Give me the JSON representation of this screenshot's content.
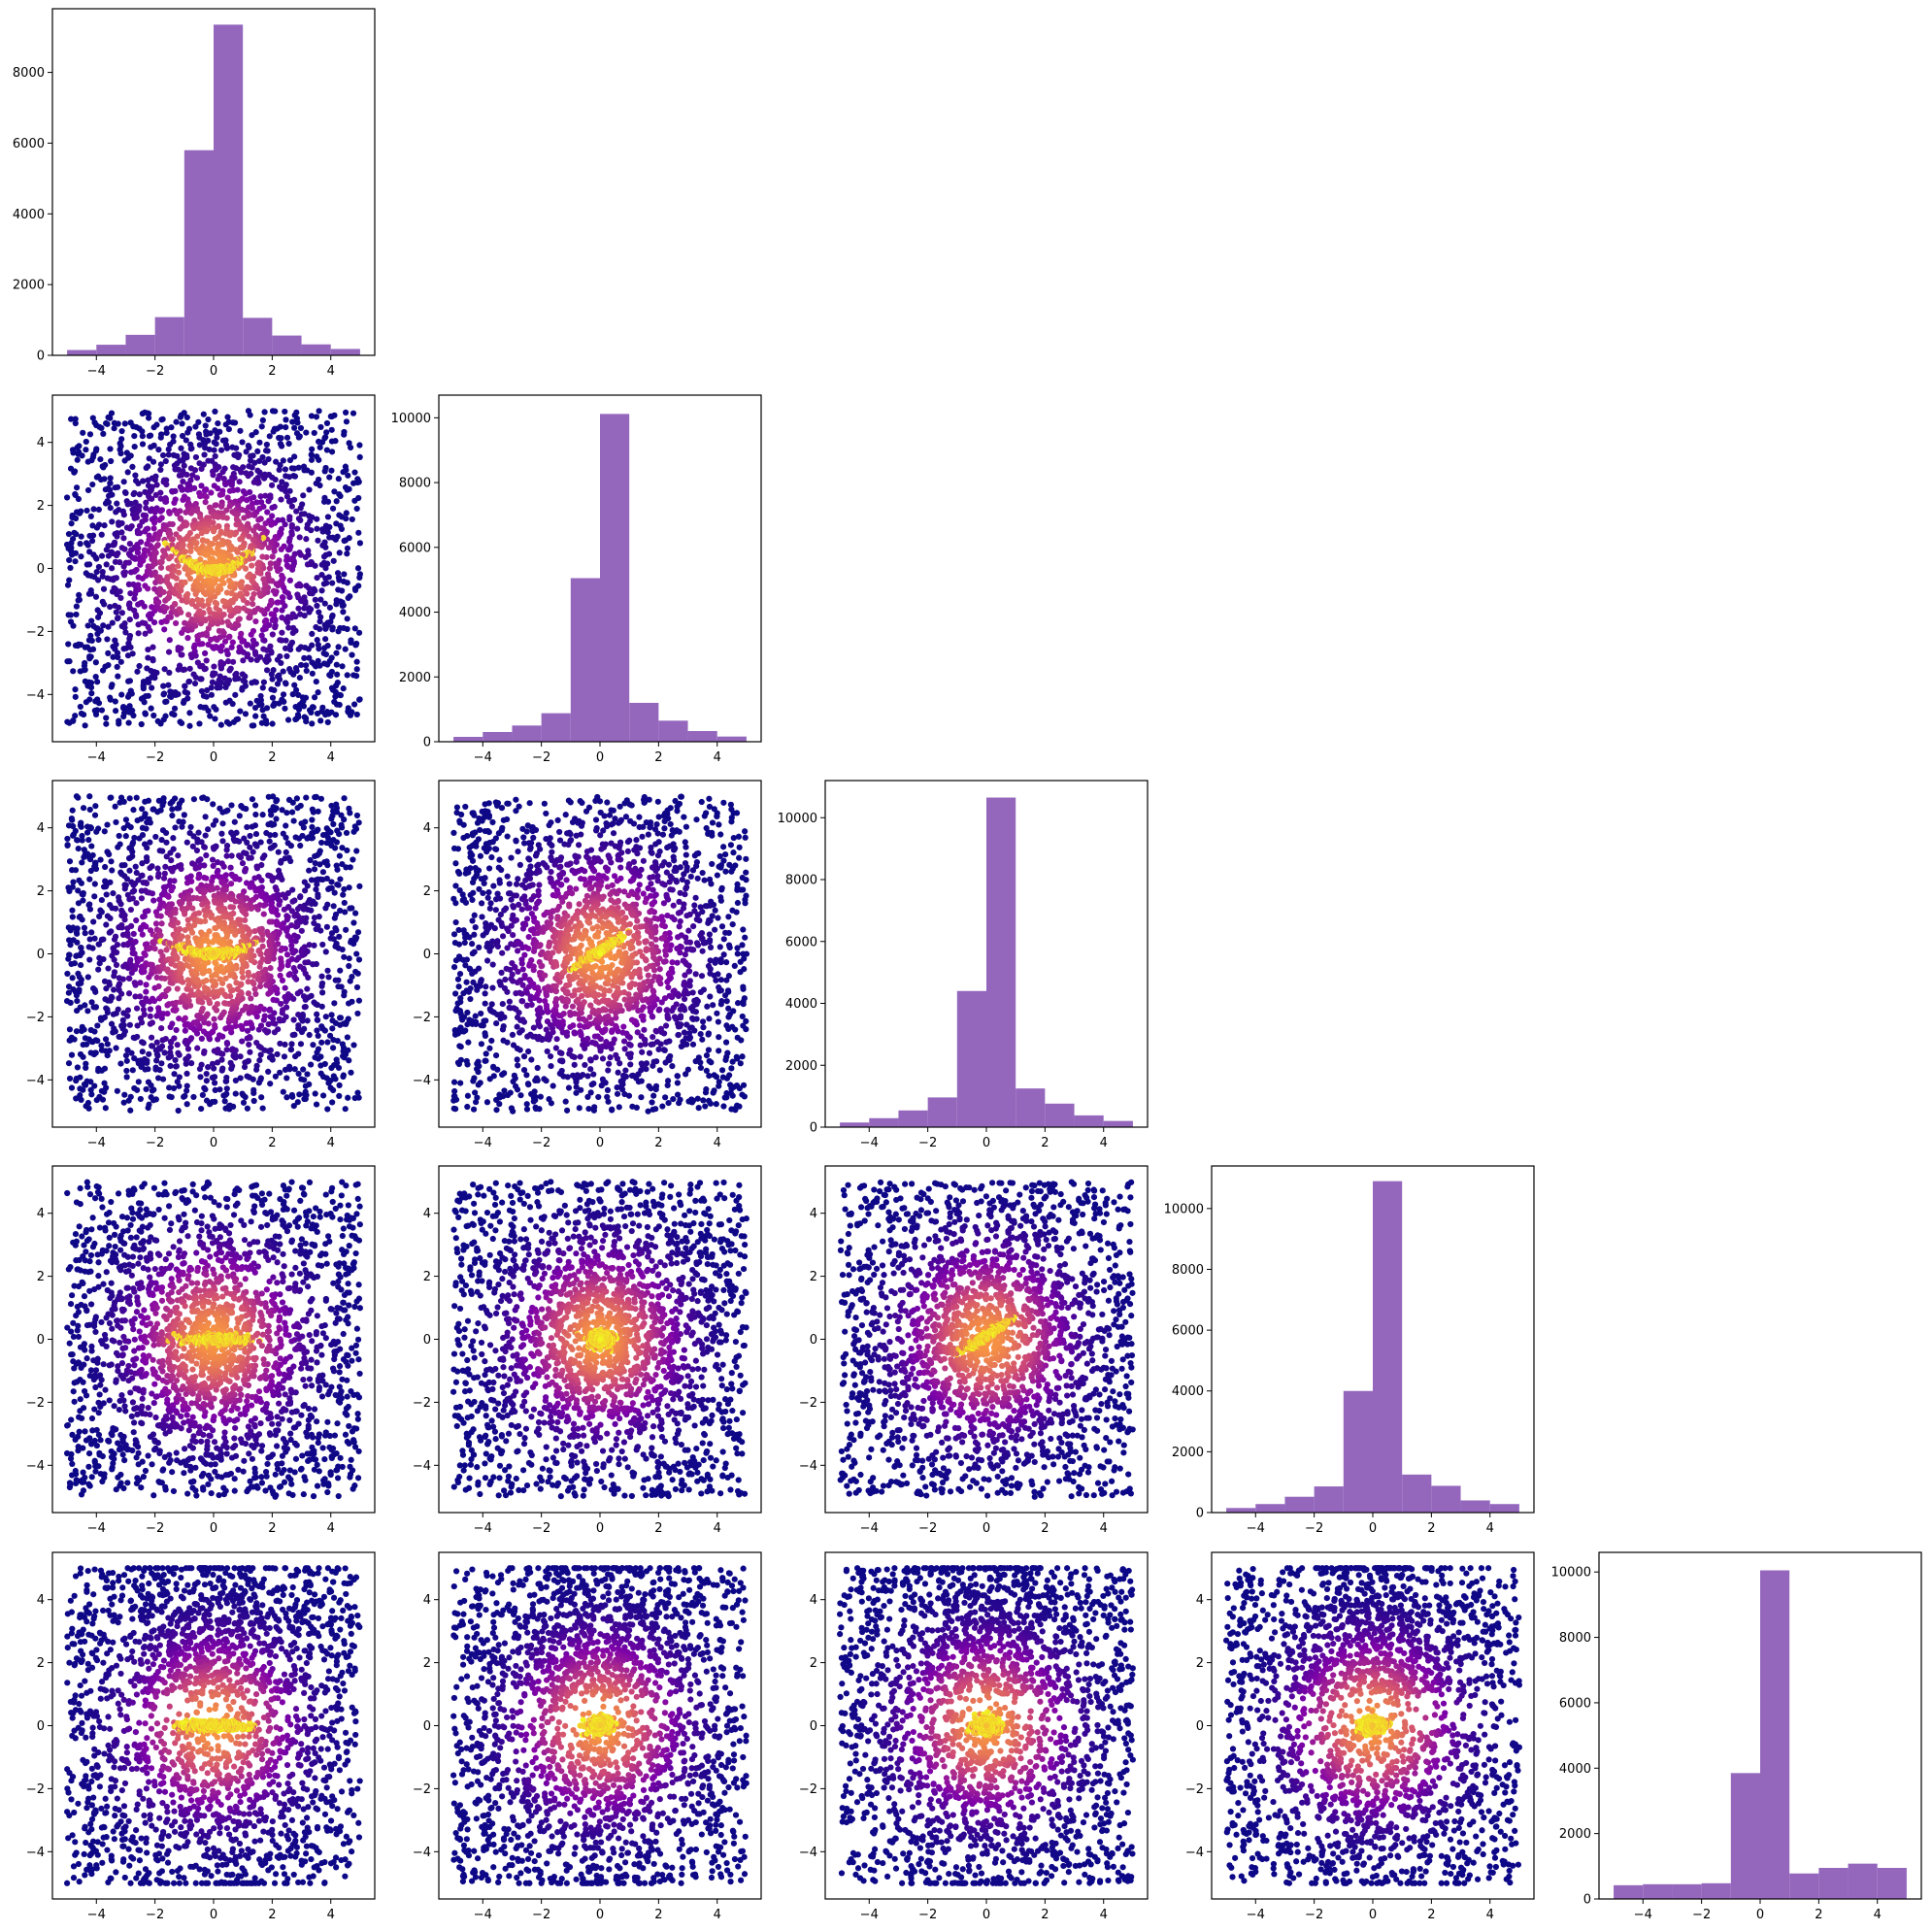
{
  "figure": {
    "type": "corner-plot",
    "dimensions": 5,
    "hist_color": "#9467bd",
    "scatter_colormap": "plasma",
    "scatter_colormap_range": [
      "#1a0a8a",
      "#f0f921"
    ]
  },
  "chart_data": [
    {
      "type": "bar",
      "panel": "hist-1",
      "row": 1,
      "col": 1,
      "x_ticks": [
        "−4",
        "−2",
        "0",
        "2",
        "4"
      ],
      "y_ticks": [
        "0",
        "2000",
        "4000",
        "6000",
        "8000"
      ],
      "xlim": [
        -5.5,
        5.5
      ],
      "ylim": [
        0,
        9800
      ],
      "bin_edges": [
        -5,
        -4,
        -3,
        -2,
        -1,
        0,
        1,
        2,
        3,
        4,
        5
      ],
      "values": [
        150,
        300,
        580,
        1080,
        5800,
        9350,
        1060,
        560,
        310,
        180
      ]
    },
    {
      "type": "scatter",
      "panel": "scatter-2-1",
      "row": 2,
      "col": 1,
      "x_ticks": [
        "−4",
        "−2",
        "0",
        "2",
        "4"
      ],
      "y_ticks": [
        "−4",
        "−2",
        "0",
        "2",
        "4"
      ],
      "xlim": [
        -5.5,
        5.5
      ],
      "ylim": [
        -5.5,
        5.5
      ],
      "core": "curve",
      "center": [
        0,
        0
      ],
      "background": "uniform",
      "range": [
        -5,
        5
      ]
    },
    {
      "type": "bar",
      "panel": "hist-2",
      "row": 2,
      "col": 2,
      "x_ticks": [
        "−4",
        "−2",
        "0",
        "2",
        "4"
      ],
      "y_ticks": [
        "0",
        "2000",
        "4000",
        "6000",
        "8000",
        "10000"
      ],
      "xlim": [
        -5.5,
        5.5
      ],
      "ylim": [
        0,
        10700
      ],
      "bin_edges": [
        -5,
        -4,
        -3,
        -2,
        -1,
        0,
        1,
        2,
        3,
        4,
        5
      ],
      "values": [
        150,
        300,
        500,
        880,
        5050,
        10120,
        1200,
        650,
        330,
        160
      ]
    },
    {
      "type": "scatter",
      "panel": "scatter-3-1",
      "row": 3,
      "col": 1,
      "x_ticks": [
        "−4",
        "−2",
        "0",
        "2",
        "4"
      ],
      "y_ticks": [
        "−4",
        "−2",
        "0",
        "2",
        "4"
      ],
      "xlim": [
        -5.5,
        5.5
      ],
      "ylim": [
        -5.5,
        5.5
      ],
      "core": "curve-flat",
      "center": [
        0,
        0
      ],
      "background": "uniform",
      "range": [
        -5,
        5
      ]
    },
    {
      "type": "scatter",
      "panel": "scatter-3-2",
      "row": 3,
      "col": 2,
      "x_ticks": [
        "−4",
        "−2",
        "0",
        "2",
        "4"
      ],
      "y_ticks": [
        "−4",
        "−2",
        "0",
        "2",
        "4"
      ],
      "xlim": [
        -5.5,
        5.5
      ],
      "ylim": [
        -5.5,
        5.5
      ],
      "core": "tilted",
      "center": [
        0,
        0
      ],
      "background": "uniform",
      "range": [
        -5,
        5
      ]
    },
    {
      "type": "bar",
      "panel": "hist-3",
      "row": 3,
      "col": 3,
      "x_ticks": [
        "−4",
        "−2",
        "0",
        "2",
        "4"
      ],
      "y_ticks": [
        "0",
        "2000",
        "4000",
        "6000",
        "8000",
        "10000"
      ],
      "xlim": [
        -5.5,
        5.5
      ],
      "ylim": [
        0,
        11200
      ],
      "bin_edges": [
        -5,
        -4,
        -3,
        -2,
        -1,
        0,
        1,
        2,
        3,
        4,
        5
      ],
      "values": [
        150,
        290,
        540,
        960,
        4400,
        10650,
        1250,
        760,
        380,
        200
      ]
    },
    {
      "type": "scatter",
      "panel": "scatter-4-1",
      "row": 4,
      "col": 1,
      "x_ticks": [
        "−4",
        "−2",
        "0",
        "2",
        "4"
      ],
      "y_ticks": [
        "−4",
        "−2",
        "0",
        "2",
        "4"
      ],
      "xlim": [
        -5.5,
        5.5
      ],
      "ylim": [
        -5.5,
        5.5
      ],
      "core": "horizontal",
      "center": [
        0,
        0
      ],
      "background": "uniform",
      "range": [
        -5,
        5
      ]
    },
    {
      "type": "scatter",
      "panel": "scatter-4-2",
      "row": 4,
      "col": 2,
      "x_ticks": [
        "−4",
        "−2",
        "0",
        "2",
        "4"
      ],
      "y_ticks": [
        "−4",
        "−2",
        "0",
        "2",
        "4"
      ],
      "xlim": [
        -5.5,
        5.5
      ],
      "ylim": [
        -5.5,
        5.5
      ],
      "core": "blob",
      "center": [
        0,
        0
      ],
      "background": "uniform",
      "range": [
        -5,
        5
      ]
    },
    {
      "type": "scatter",
      "panel": "scatter-4-3",
      "row": 4,
      "col": 3,
      "x_ticks": [
        "−4",
        "−2",
        "0",
        "2",
        "4"
      ],
      "y_ticks": [
        "−4",
        "−2",
        "0",
        "2",
        "4"
      ],
      "xlim": [
        -5.5,
        5.5
      ],
      "ylim": [
        -5.5,
        5.5
      ],
      "core": "tilted",
      "center": [
        0,
        0
      ],
      "background": "uniform",
      "range": [
        -5,
        5
      ]
    },
    {
      "type": "bar",
      "panel": "hist-4",
      "row": 4,
      "col": 4,
      "x_ticks": [
        "−4",
        "−2",
        "0",
        "2",
        "4"
      ],
      "y_ticks": [
        "0",
        "2000",
        "4000",
        "6000",
        "8000",
        "10000"
      ],
      "xlim": [
        -5.5,
        5.5
      ],
      "ylim": [
        0,
        11400
      ],
      "bin_edges": [
        -5,
        -4,
        -3,
        -2,
        -1,
        0,
        1,
        2,
        3,
        4,
        5
      ],
      "values": [
        150,
        280,
        520,
        860,
        4000,
        10900,
        1250,
        880,
        400,
        280
      ]
    },
    {
      "type": "scatter",
      "panel": "scatter-5-1",
      "row": 5,
      "col": 1,
      "x_ticks": [
        "−4",
        "−2",
        "0",
        "2",
        "4"
      ],
      "y_ticks": [
        "−4",
        "−2",
        "0",
        "2",
        "4"
      ],
      "xlim": [
        -5.5,
        5.5
      ],
      "ylim": [
        -5.5,
        5.5
      ],
      "core": "horizontal",
      "center": [
        0,
        0
      ],
      "background": "uniform",
      "range": [
        -5,
        5
      ]
    },
    {
      "type": "scatter",
      "panel": "scatter-5-2",
      "row": 5,
      "col": 2,
      "x_ticks": [
        "−4",
        "−2",
        "0",
        "2",
        "4"
      ],
      "y_ticks": [
        "−4",
        "−2",
        "0",
        "2",
        "4"
      ],
      "xlim": [
        -5.5,
        5.5
      ],
      "ylim": [
        -5.5,
        5.5
      ],
      "core": "blob",
      "center": [
        0,
        0
      ],
      "background": "uniform",
      "range": [
        -5,
        5
      ]
    },
    {
      "type": "scatter",
      "panel": "scatter-5-3",
      "row": 5,
      "col": 3,
      "x_ticks": [
        "−4",
        "−2",
        "0",
        "2",
        "4"
      ],
      "y_ticks": [
        "−4",
        "−2",
        "0",
        "2",
        "4"
      ],
      "xlim": [
        -5.5,
        5.5
      ],
      "ylim": [
        -5.5,
        5.5
      ],
      "core": "blob",
      "center": [
        0,
        0
      ],
      "background": "uniform",
      "range": [
        -5,
        5
      ]
    },
    {
      "type": "scatter",
      "panel": "scatter-5-4",
      "row": 5,
      "col": 4,
      "x_ticks": [
        "−4",
        "−2",
        "0",
        "2",
        "4"
      ],
      "y_ticks": [
        "−4",
        "−2",
        "0",
        "2",
        "4"
      ],
      "xlim": [
        -5.5,
        5.5
      ],
      "ylim": [
        -5.5,
        5.5
      ],
      "core": "blob",
      "center": [
        0,
        0
      ],
      "background": "uniform",
      "range": [
        -5,
        5
      ]
    },
    {
      "type": "bar",
      "panel": "hist-5",
      "row": 5,
      "col": 5,
      "x_ticks": [
        "−4",
        "−2",
        "0",
        "2",
        "4"
      ],
      "y_ticks": [
        "0",
        "2000",
        "4000",
        "6000",
        "8000",
        "10000"
      ],
      "xlim": [
        -5.5,
        5.5
      ],
      "ylim": [
        0,
        10600
      ],
      "bin_edges": [
        -5,
        -4,
        -3,
        -2,
        -1,
        0,
        1,
        2,
        3,
        4,
        5
      ],
      "values": [
        420,
        450,
        450,
        480,
        3850,
        10050,
        780,
        950,
        1080,
        950
      ]
    }
  ]
}
